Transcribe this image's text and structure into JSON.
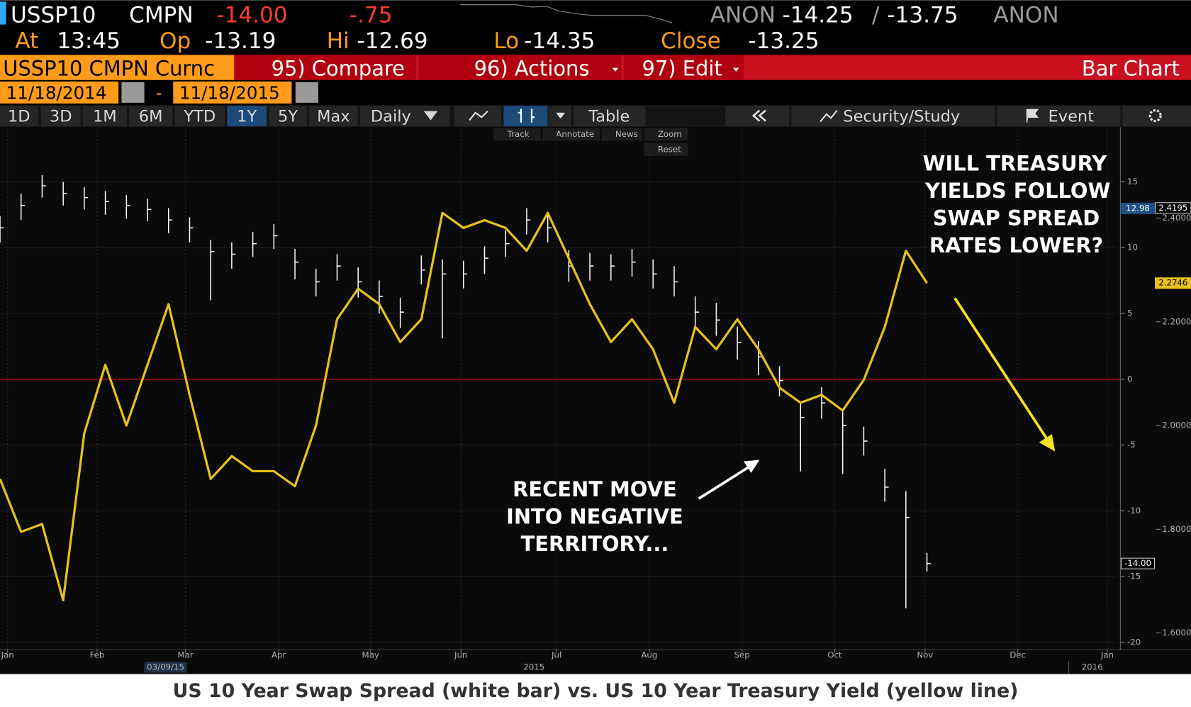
{
  "header": {
    "ticker": "USSP10",
    "source": "CMPN",
    "last": "-14.00",
    "change": "-.75",
    "bid_source": "ANON",
    "bid": "-14.25",
    "separator": "/",
    "ask": "-13.75",
    "ask_source": "ANON"
  },
  "quote": {
    "at_label": "At",
    "time": "13:45",
    "open_label": "Op",
    "open": "-13.19",
    "high_label": "Hi",
    "high": "-12.69",
    "low_label": "Lo",
    "low": "-14.35",
    "close_label": "Close",
    "close": "-13.25"
  },
  "menu": {
    "security": "USSP10 CMPN Curnc",
    "compare": "95) Compare",
    "actions": "96) Actions",
    "edit": "97) Edit",
    "view": "Bar Chart"
  },
  "dates": {
    "start": "11/18/2014",
    "dash": "-",
    "end": "11/18/2015"
  },
  "periods": [
    "1D",
    "3D",
    "1M",
    "6M",
    "YTD",
    "1Y",
    "5Y",
    "Max"
  ],
  "frequency": "Daily",
  "table": "Table",
  "study": "Security/Study",
  "event": "Event",
  "tools": [
    "Track",
    "Annotate",
    "News",
    "Zoom",
    "Reset"
  ],
  "caption": "US 10 Year Swap Spread (white bar) vs. US 10 Year Treasury Yield (yellow line)",
  "chart_data": {
    "type": "bar",
    "xlim": [
      0,
      53
    ],
    "xticks": [
      {
        "value": 0.36,
        "label": "Jan"
      },
      {
        "value": 4.61,
        "label": "Feb"
      },
      {
        "value": 8.8,
        "label": "Mar"
      },
      {
        "value": 13.23,
        "label": "Apr"
      },
      {
        "value": 17.59,
        "label": "May"
      },
      {
        "value": 21.88,
        "label": "Jun"
      },
      {
        "value": 26.42,
        "label": "Jul"
      },
      {
        "value": 30.82,
        "label": "Aug"
      },
      {
        "value": 35.22,
        "label": "Sep"
      },
      {
        "value": 39.62,
        "label": "Oct"
      },
      {
        "value": 43.91,
        "label": "Nov"
      },
      {
        "value": 48.31,
        "label": "Dec"
      },
      {
        "value": 52.56,
        "label": "Jan"
      }
    ],
    "date_marker": "03/09/15",
    "years": [
      "2015",
      "2016"
    ],
    "ylim": [
      -20.5,
      19.1
    ],
    "yticks": [
      -20,
      -15,
      -10,
      -5,
      0,
      5,
      10,
      15
    ],
    "y2lim": [
      1.569,
      2.574
    ],
    "y2ticks": [
      {
        "value": 1.6,
        "label": "1.6000"
      },
      {
        "value": 1.8,
        "label": "1.8000"
      },
      {
        "value": 2.0,
        "label": "2.0000"
      },
      {
        "value": 2.2,
        "label": "2.2000"
      },
      {
        "value": 2.4,
        "label": "2.4000"
      }
    ],
    "grid": true,
    "zero_line": {
      "value": 0,
      "color": "#d01010"
    },
    "series": [
      {
        "type": "bar",
        "color": "#ffffff",
        "values": [
          11.5,
          13.2,
          14.7,
          14.1,
          13.8,
          13.5,
          13.2,
          12.9,
          12.1,
          11.5,
          9.7,
          9.5,
          10.3,
          10.9,
          8.9,
          7.4,
          8.6,
          7.4,
          6.3,
          5.1,
          8.3,
          8.0,
          8.0,
          9.2,
          10.3,
          12.1,
          11.5,
          8.6,
          8.6,
          8.6,
          8.9,
          8.0,
          7.4,
          5.1,
          4.5,
          2.8,
          1.7,
          -0.1,
          -2.9,
          -1.8,
          -3.5,
          -4.7,
          -8.2,
          -10.5,
          -14.0
        ],
        "high": [
          12.4,
          14.1,
          15.5,
          15.0,
          14.6,
          14.3,
          14.0,
          13.7,
          13.0,
          12.3,
          10.6,
          10.4,
          11.2,
          11.8,
          9.9,
          8.4,
          9.5,
          8.5,
          7.5,
          6.2,
          9.4,
          9.1,
          9.0,
          10.1,
          11.3,
          13.0,
          12.5,
          9.8,
          9.6,
          9.5,
          9.9,
          9.1,
          8.6,
          6.3,
          5.8,
          4.0,
          2.9,
          1.0,
          -1.8,
          -0.6,
          -2.4,
          -3.6,
          -6.8,
          -8.5,
          -13.2
        ],
        "low": [
          10.4,
          12.1,
          13.8,
          13.2,
          12.9,
          12.5,
          12.2,
          12.0,
          11.1,
          10.4,
          6.0,
          8.4,
          9.3,
          9.9,
          7.6,
          6.3,
          7.5,
          6.2,
          5.0,
          3.9,
          7.2,
          3.1,
          6.9,
          8.0,
          9.3,
          11.0,
          10.4,
          7.4,
          7.5,
          7.5,
          7.8,
          6.9,
          6.3,
          3.9,
          3.3,
          1.5,
          0.3,
          -1.3,
          -7.0,
          -3.0,
          -7.2,
          -5.8,
          -9.3,
          -17.4,
          -14.6
        ]
      },
      {
        "type": "line",
        "axis": "y2",
        "color": "#e8c21a",
        "values": [
          1.897,
          1.795,
          1.81,
          1.663,
          1.985,
          2.117,
          2.0,
          2.117,
          2.234,
          2.059,
          1.897,
          1.941,
          1.912,
          1.912,
          1.883,
          2.0,
          2.205,
          2.264,
          2.234,
          2.161,
          2.205,
          2.41,
          2.381,
          2.396,
          2.381,
          2.337,
          2.41,
          2.322,
          2.234,
          2.161,
          2.205,
          2.147,
          2.044,
          2.19,
          2.147,
          2.205,
          2.147,
          2.073,
          2.044,
          2.059,
          2.029,
          2.088,
          2.19,
          2.337,
          2.2746
        ]
      }
    ],
    "tags": [
      {
        "value": 12.98,
        "axis": "y",
        "color": "#1f4f86"
      },
      {
        "value": -14,
        "label": "-14.00",
        "axis": "y",
        "color": "#000000"
      },
      {
        "value": 2.4195,
        "axis": "y2",
        "color": "#000000"
      },
      {
        "value": 2.2746,
        "axis": "y2",
        "color": "#e8c21a"
      }
    ],
    "annotations": [
      {
        "lines": [
          "WILL TREASURY",
          "YIELDS FOLLOW",
          "SWAP SPREAD",
          "RATES LOWER?"
        ]
      },
      {
        "lines": [
          "RECENT MOVE",
          "INTO NEGATIVE",
          "TERRITORY..."
        ]
      }
    ]
  }
}
